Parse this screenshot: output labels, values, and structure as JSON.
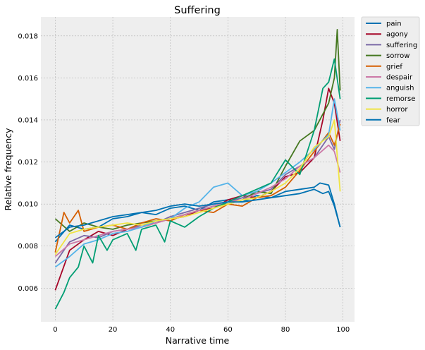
{
  "chart_data": {
    "type": "line",
    "title": "Suffering",
    "xlabel": "Narrative time",
    "ylabel": "Relative frequency",
    "xlim": [
      -5,
      104
    ],
    "ylim": [
      0.0044,
      0.0189
    ],
    "xticks": [
      "0",
      "20",
      "40",
      "60",
      "80",
      "100"
    ],
    "yticks": [
      "0.006",
      "0.008",
      "0.010",
      "0.012",
      "0.014",
      "0.016",
      "0.018"
    ],
    "grid": true,
    "legend_position": "outside-top-right",
    "background": "#eeeeee",
    "series": [
      {
        "name": "pain",
        "color": "#0072b2",
        "x": [
          0,
          5,
          10,
          15,
          20,
          25,
          30,
          35,
          40,
          45,
          50,
          55,
          60,
          65,
          70,
          75,
          80,
          85,
          90,
          92,
          95,
          97,
          99
        ],
        "y": [
          0.0082,
          0.009,
          0.0088,
          0.0089,
          0.0093,
          0.0094,
          0.0096,
          0.0095,
          0.0098,
          0.0099,
          0.0097,
          0.0101,
          0.0102,
          0.0101,
          0.0104,
          0.0103,
          0.0106,
          0.0107,
          0.0108,
          0.011,
          0.0109,
          0.01,
          0.0089
        ]
      },
      {
        "name": "agony",
        "color": "#a60628",
        "x": [
          0,
          5,
          10,
          15,
          20,
          25,
          30,
          35,
          40,
          45,
          50,
          55,
          60,
          65,
          70,
          75,
          80,
          85,
          90,
          93,
          95,
          97,
          99
        ],
        "y": [
          0.0059,
          0.0078,
          0.0083,
          0.0087,
          0.0085,
          0.0088,
          0.0089,
          0.0091,
          0.0093,
          0.0094,
          0.0097,
          0.0098,
          0.0102,
          0.0104,
          0.0103,
          0.0106,
          0.0113,
          0.0115,
          0.0122,
          0.014,
          0.0155,
          0.0148,
          0.013
        ]
      },
      {
        "name": "suffering",
        "color": "#7a68a6",
        "x": [
          0,
          5,
          10,
          15,
          20,
          25,
          30,
          35,
          40,
          45,
          50,
          55,
          60,
          65,
          70,
          75,
          80,
          85,
          90,
          95,
          97,
          99
        ],
        "y": [
          0.0072,
          0.0082,
          0.0085,
          0.0084,
          0.0087,
          0.0088,
          0.009,
          0.0091,
          0.0094,
          0.0096,
          0.0098,
          0.01,
          0.0101,
          0.0103,
          0.0105,
          0.0107,
          0.0114,
          0.0118,
          0.0122,
          0.0132,
          0.0126,
          0.014
        ]
      },
      {
        "name": "sorrow",
        "color": "#467821",
        "x": [
          0,
          5,
          10,
          15,
          20,
          25,
          30,
          35,
          40,
          45,
          50,
          55,
          60,
          65,
          70,
          75,
          80,
          85,
          90,
          95,
          97,
          98,
          99
        ],
        "y": [
          0.0093,
          0.0087,
          0.0091,
          0.0089,
          0.0088,
          0.009,
          0.0091,
          0.0092,
          0.0093,
          0.0095,
          0.0097,
          0.0099,
          0.01,
          0.0102,
          0.0106,
          0.0105,
          0.0118,
          0.013,
          0.0135,
          0.0148,
          0.016,
          0.0183,
          0.0154
        ]
      },
      {
        "name": "grief",
        "color": "#d55e00",
        "x": [
          0,
          3,
          5,
          8,
          10,
          15,
          20,
          25,
          30,
          35,
          40,
          45,
          50,
          55,
          60,
          65,
          70,
          75,
          80,
          85,
          90,
          95,
          97,
          99
        ],
        "y": [
          0.0077,
          0.0096,
          0.0091,
          0.0097,
          0.0087,
          0.0089,
          0.009,
          0.0088,
          0.0091,
          0.0093,
          0.0092,
          0.0095,
          0.0097,
          0.0096,
          0.01,
          0.0099,
          0.0103,
          0.0104,
          0.0108,
          0.0116,
          0.0125,
          0.0134,
          0.0128,
          0.0138
        ]
      },
      {
        "name": "despair",
        "color": "#cc79a7",
        "x": [
          0,
          5,
          10,
          15,
          20,
          25,
          30,
          35,
          40,
          45,
          50,
          55,
          60,
          65,
          70,
          75,
          80,
          85,
          90,
          95,
          97,
          99
        ],
        "y": [
          0.0075,
          0.0081,
          0.0083,
          0.0085,
          0.0087,
          0.0088,
          0.0089,
          0.0091,
          0.0093,
          0.0095,
          0.0097,
          0.0099,
          0.0101,
          0.0102,
          0.0105,
          0.0108,
          0.0112,
          0.0118,
          0.0122,
          0.0128,
          0.0125,
          0.0115
        ]
      },
      {
        "name": "anguish",
        "color": "#56b4e9",
        "x": [
          0,
          5,
          10,
          15,
          20,
          25,
          30,
          35,
          40,
          45,
          50,
          55,
          60,
          65,
          70,
          75,
          80,
          85,
          90,
          95,
          97,
          99
        ],
        "y": [
          0.007,
          0.0075,
          0.0081,
          0.0083,
          0.0086,
          0.0087,
          0.0089,
          0.0092,
          0.0093,
          0.0098,
          0.0101,
          0.0108,
          0.011,
          0.0104,
          0.0106,
          0.011,
          0.0115,
          0.012,
          0.0126,
          0.0133,
          0.015,
          0.0135
        ]
      },
      {
        "name": "remorse",
        "color": "#009e73",
        "x": [
          0,
          3,
          5,
          8,
          10,
          13,
          15,
          18,
          20,
          25,
          28,
          30,
          35,
          38,
          40,
          45,
          50,
          55,
          60,
          65,
          70,
          75,
          80,
          85,
          90,
          93,
          95,
          97,
          99
        ],
        "y": [
          0.005,
          0.0058,
          0.0065,
          0.007,
          0.008,
          0.0072,
          0.0085,
          0.0078,
          0.0083,
          0.0086,
          0.0078,
          0.0088,
          0.009,
          0.0082,
          0.0092,
          0.0089,
          0.0094,
          0.0098,
          0.0101,
          0.0104,
          0.0107,
          0.011,
          0.0121,
          0.0114,
          0.0135,
          0.0155,
          0.0158,
          0.0169,
          0.015
        ]
      },
      {
        "name": "horror",
        "color": "#f0e442",
        "x": [
          0,
          5,
          10,
          15,
          20,
          25,
          30,
          35,
          40,
          45,
          50,
          55,
          60,
          65,
          70,
          75,
          80,
          85,
          90,
          95,
          97,
          99
        ],
        "y": [
          0.0076,
          0.0086,
          0.0088,
          0.0089,
          0.009,
          0.0091,
          0.009,
          0.0092,
          0.0093,
          0.0094,
          0.0096,
          0.0098,
          0.01,
          0.0102,
          0.0103,
          0.0106,
          0.011,
          0.0117,
          0.0127,
          0.0132,
          0.014,
          0.0106
        ]
      },
      {
        "name": "fear",
        "color": "#0072b2",
        "x": [
          0,
          5,
          10,
          15,
          20,
          25,
          30,
          35,
          40,
          45,
          50,
          55,
          60,
          65,
          70,
          75,
          80,
          85,
          90,
          93,
          95,
          97,
          99
        ],
        "y": [
          0.0084,
          0.0089,
          0.009,
          0.0092,
          0.0094,
          0.0095,
          0.0096,
          0.0097,
          0.0099,
          0.01,
          0.0099,
          0.01,
          0.0101,
          0.0101,
          0.0102,
          0.0103,
          0.0104,
          0.0105,
          0.0107,
          0.0105,
          0.0106,
          0.0099,
          0.0089
        ]
      }
    ]
  }
}
